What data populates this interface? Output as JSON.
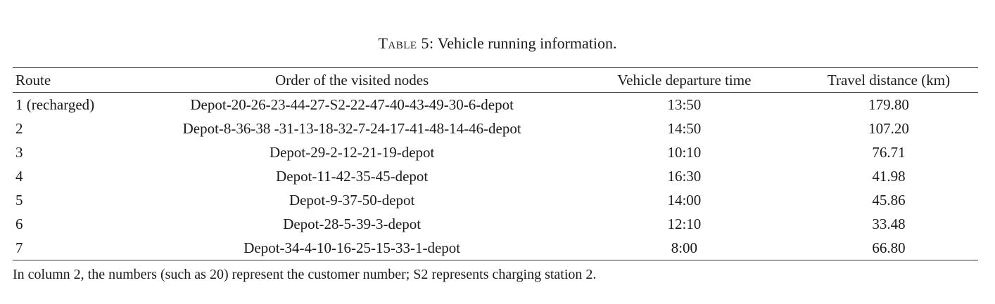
{
  "caption": {
    "label": "Table 5:",
    "text": "Vehicle running information."
  },
  "table": {
    "headers": [
      "Route",
      "Order of the visited nodes",
      "Vehicle departure time",
      "Travel distance (km)"
    ],
    "rows": [
      [
        "1 (recharged)",
        "Depot-20-26-23-44-27-S2-22-47-40-43-49-30-6-depot",
        "13:50",
        "179.80"
      ],
      [
        "2",
        "Depot-8-36-38 -31-13-18-32-7-24-17-41-48-14-46-depot",
        "14:50",
        "107.20"
      ],
      [
        "3",
        "Depot-29-2-12-21-19-depot",
        "10:10",
        "76.71"
      ],
      [
        "4",
        "Depot-11-42-35-45-depot",
        "16:30",
        "41.98"
      ],
      [
        "5",
        "Depot-9-37-50-depot",
        "14:00",
        "45.86"
      ],
      [
        "6",
        "Depot-28-5-39-3-depot",
        "12:10",
        "33.48"
      ],
      [
        "7",
        "Depot-34-4-10-16-25-15-33-1-depot",
        "8:00",
        "66.80"
      ]
    ]
  },
  "footnote": "In column 2, the numbers (such as 20) represent the customer number; S2 represents charging station 2."
}
